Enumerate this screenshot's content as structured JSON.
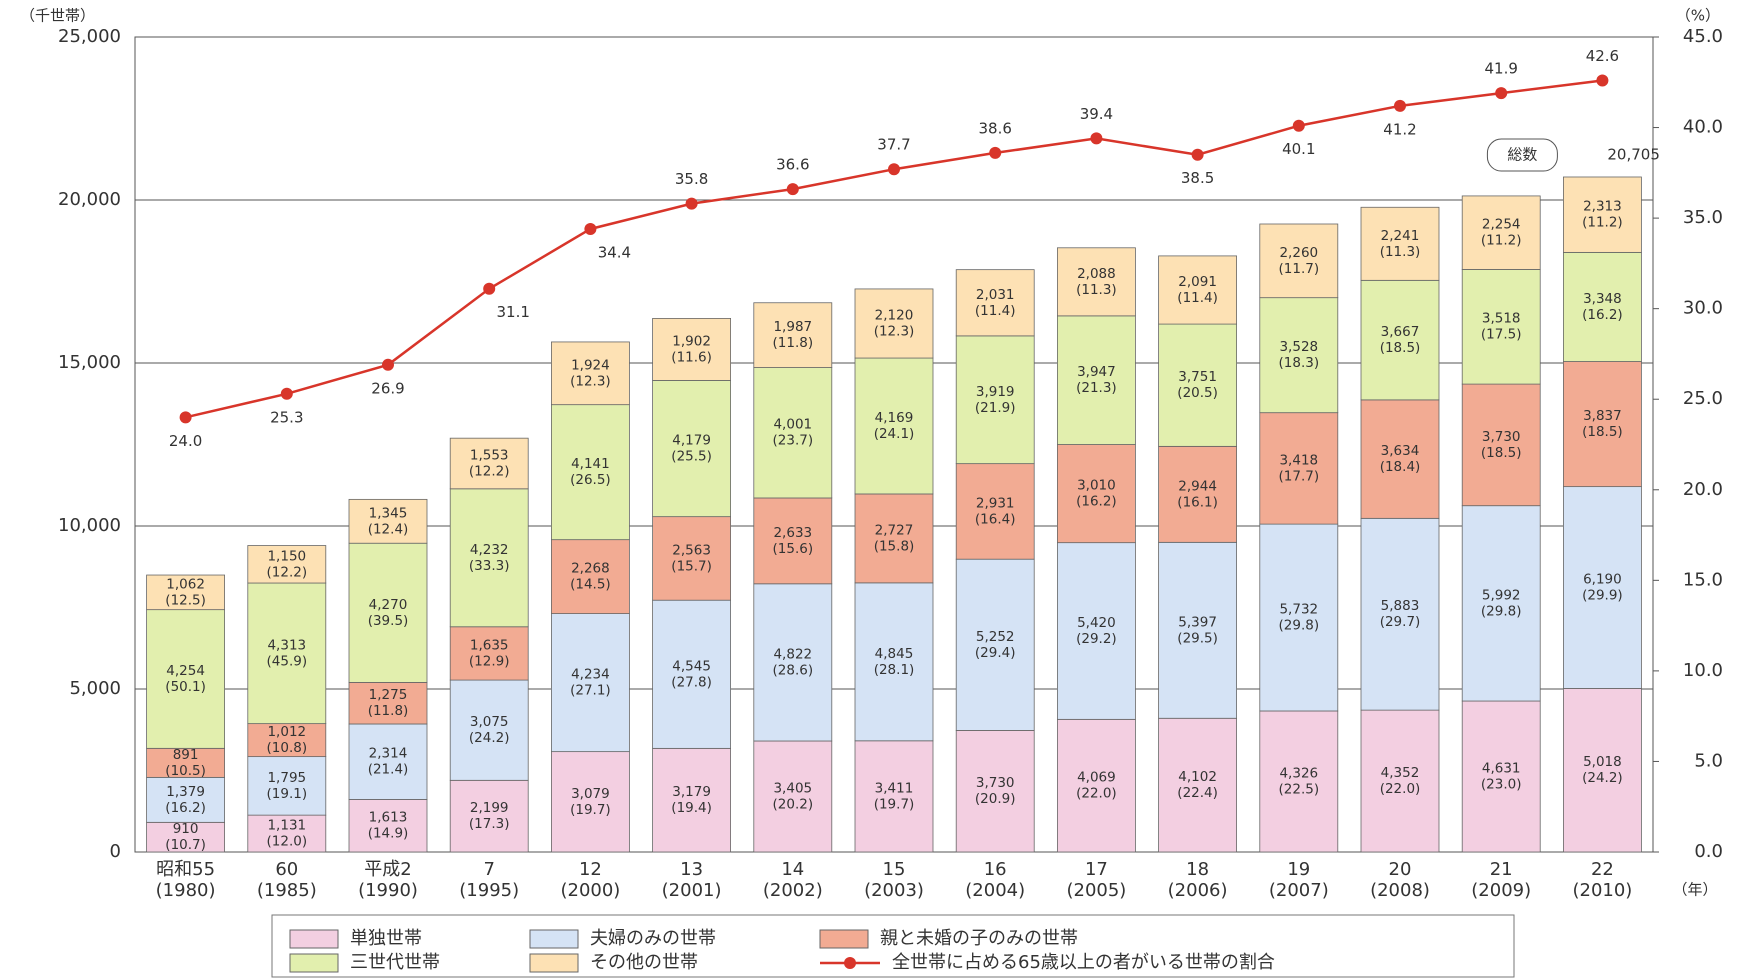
{
  "chart_data": {
    "type": "stacked-bar-line",
    "y_unit": "（千世帯）",
    "y2_unit": "（%）",
    "x_unit": "（年）",
    "categories": [
      [
        "昭和55",
        "(1980)"
      ],
      [
        "60",
        "(1985)"
      ],
      [
        "平成2",
        "(1990)"
      ],
      [
        "7",
        "(1995)"
      ],
      [
        "12",
        "(2000)"
      ],
      [
        "13",
        "(2001)"
      ],
      [
        "14",
        "(2002)"
      ],
      [
        "15",
        "(2003)"
      ],
      [
        "16",
        "(2004)"
      ],
      [
        "17",
        "(2005)"
      ],
      [
        "18",
        "(2006)"
      ],
      [
        "19",
        "(2007)"
      ],
      [
        "20",
        "(2008)"
      ],
      [
        "21",
        "(2009)"
      ],
      [
        "22",
        "(2010)"
      ]
    ],
    "ylim": [
      0,
      25000
    ],
    "yticks": [
      0,
      {
        "value": 5000,
        "label": "5,000"
      },
      {
        "value": 10000,
        "label": "10,000"
      },
      {
        "value": 15000,
        "label": "15,000"
      },
      {
        "value": 20000,
        "label": "20,000"
      },
      {
        "value": 25000,
        "label": "25,000"
      }
    ],
    "y2lim": [
      0,
      45
    ],
    "y2ticks": [
      {
        "value": 0,
        "label": "0.0"
      },
      {
        "value": 5,
        "label": "5.0"
      },
      {
        "value": 10,
        "label": "10.0"
      },
      {
        "value": 15,
        "label": "15.0"
      },
      {
        "value": 20,
        "label": "20.0"
      },
      {
        "value": 25,
        "label": "25.0"
      },
      {
        "value": 30,
        "label": "30.0"
      },
      {
        "value": 35,
        "label": "35.0"
      },
      {
        "value": 40,
        "label": "40.0"
      },
      {
        "value": 45,
        "label": "45.0"
      }
    ],
    "grid": true,
    "series": [
      {
        "name": "単独世帯",
        "color": "#f3cfe1",
        "values": [
          910,
          1131,
          1613,
          2199,
          3079,
          3179,
          3405,
          3411,
          3730,
          4069,
          4102,
          4326,
          4352,
          4631,
          5018
        ],
        "value_labels": [
          "910",
          "1,131",
          "1,613",
          "2,199",
          "3,079",
          "3,179",
          "3,405",
          "3,411",
          "3,730",
          "4,069",
          "4,102",
          "4,326",
          "4,352",
          "4,631",
          "5,018"
        ],
        "share_labels": [
          "(10.7)",
          "(12.0)",
          "(14.9)",
          "(17.3)",
          "(19.7)",
          "(19.4)",
          "(20.2)",
          "(19.7)",
          "(20.9)",
          "(22.0)",
          "(22.4)",
          "(22.5)",
          "(22.0)",
          "(23.0)",
          "(24.2)"
        ]
      },
      {
        "name": "夫婦のみの世帯",
        "color": "#d5e3f5",
        "values": [
          1379,
          1795,
          2314,
          3075,
          4234,
          4545,
          4822,
          4845,
          5252,
          5420,
          5397,
          5732,
          5883,
          5992,
          6190
        ],
        "value_labels": [
          "1,379",
          "1,795",
          "2,314",
          "3,075",
          "4,234",
          "4,545",
          "4,822",
          "4,845",
          "5,252",
          "5,420",
          "5,397",
          "5,732",
          "5,883",
          "5,992",
          "6,190"
        ],
        "share_labels": [
          "(16.2)",
          "(19.1)",
          "(21.4)",
          "(24.2)",
          "(27.1)",
          "(27.8)",
          "(28.6)",
          "(28.1)",
          "(29.4)",
          "(29.2)",
          "(29.5)",
          "(29.8)",
          "(29.7)",
          "(29.8)",
          "(29.9)"
        ]
      },
      {
        "name": "親と未婚の子のみの世帯",
        "color": "#f2ab93",
        "values": [
          891,
          1012,
          1275,
          1635,
          2268,
          2563,
          2633,
          2727,
          2931,
          3010,
          2944,
          3418,
          3634,
          3730,
          3837
        ],
        "value_labels": [
          "891",
          "1,012",
          "1,275",
          "1,635",
          "2,268",
          "2,563",
          "2,633",
          "2,727",
          "2,931",
          "3,010",
          "2,944",
          "3,418",
          "3,634",
          "3,730",
          "3,837"
        ],
        "share_labels": [
          "(10.5)",
          "(10.8)",
          "(11.8)",
          "(12.9)",
          "(14.5)",
          "(15.7)",
          "(15.6)",
          "(15.8)",
          "(16.4)",
          "(16.2)",
          "(16.1)",
          "(17.7)",
          "(18.4)",
          "(18.5)",
          "(18.5)"
        ]
      },
      {
        "name": "三世代世帯",
        "color": "#e2efae",
        "values": [
          4254,
          4313,
          4270,
          4232,
          4141,
          4179,
          4001,
          4169,
          3919,
          3947,
          3751,
          3528,
          3667,
          3518,
          3348
        ],
        "value_labels": [
          "4,254",
          "4,313",
          "4,270",
          "4,232",
          "4,141",
          "4,179",
          "4,001",
          "4,169",
          "3,919",
          "3,947",
          "3,751",
          "3,528",
          "3,667",
          "3,518",
          "3,348"
        ],
        "share_labels": [
          "(50.1)",
          "(45.9)",
          "(39.5)",
          "(33.3)",
          "(26.5)",
          "(25.5)",
          "(23.7)",
          "(24.1)",
          "(21.9)",
          "(21.3)",
          "(20.5)",
          "(18.3)",
          "(18.5)",
          "(17.5)",
          "(16.2)"
        ]
      },
      {
        "name": "その他の世帯",
        "color": "#fde1b4",
        "values": [
          1062,
          1150,
          1345,
          1553,
          1924,
          1902,
          1987,
          2120,
          2031,
          2088,
          2091,
          2260,
          2241,
          2254,
          2313
        ],
        "value_labels": [
          "1,062",
          "1,150",
          "1,345",
          "1,553",
          "1,924",
          "1,902",
          "1,987",
          "2,120",
          "2,031",
          "2,088",
          "2,091",
          "2,260",
          "2,241",
          "2,254",
          "2,313"
        ],
        "share_labels": [
          "(12.5)",
          "(12.2)",
          "(12.4)",
          "(12.2)",
          "(12.3)",
          "(11.6)",
          "(11.8)",
          "(12.3)",
          "(11.4)",
          "(11.3)",
          "(11.4)",
          "(11.7)",
          "(11.3)",
          "(11.2)",
          "(11.2)"
        ]
      },
      {
        "name": "全世帯に占める65歳以上の者がいる世帯の割合",
        "color": "#d8352a",
        "axis": "y2",
        "kind": "line",
        "values": [
          24.0,
          25.3,
          26.9,
          31.1,
          34.4,
          35.8,
          36.6,
          37.7,
          38.6,
          39.4,
          38.5,
          40.1,
          41.2,
          41.9,
          42.6
        ],
        "value_labels": [
          "24.0",
          "25.3",
          "26.9",
          "31.1",
          "34.4",
          "35.8",
          "36.6",
          "37.7",
          "38.6",
          "39.4",
          "38.5",
          "40.1",
          "41.2",
          "41.9",
          "42.6"
        ]
      }
    ],
    "total_name": "総数",
    "total": 20705,
    "total_label": "20,705"
  }
}
